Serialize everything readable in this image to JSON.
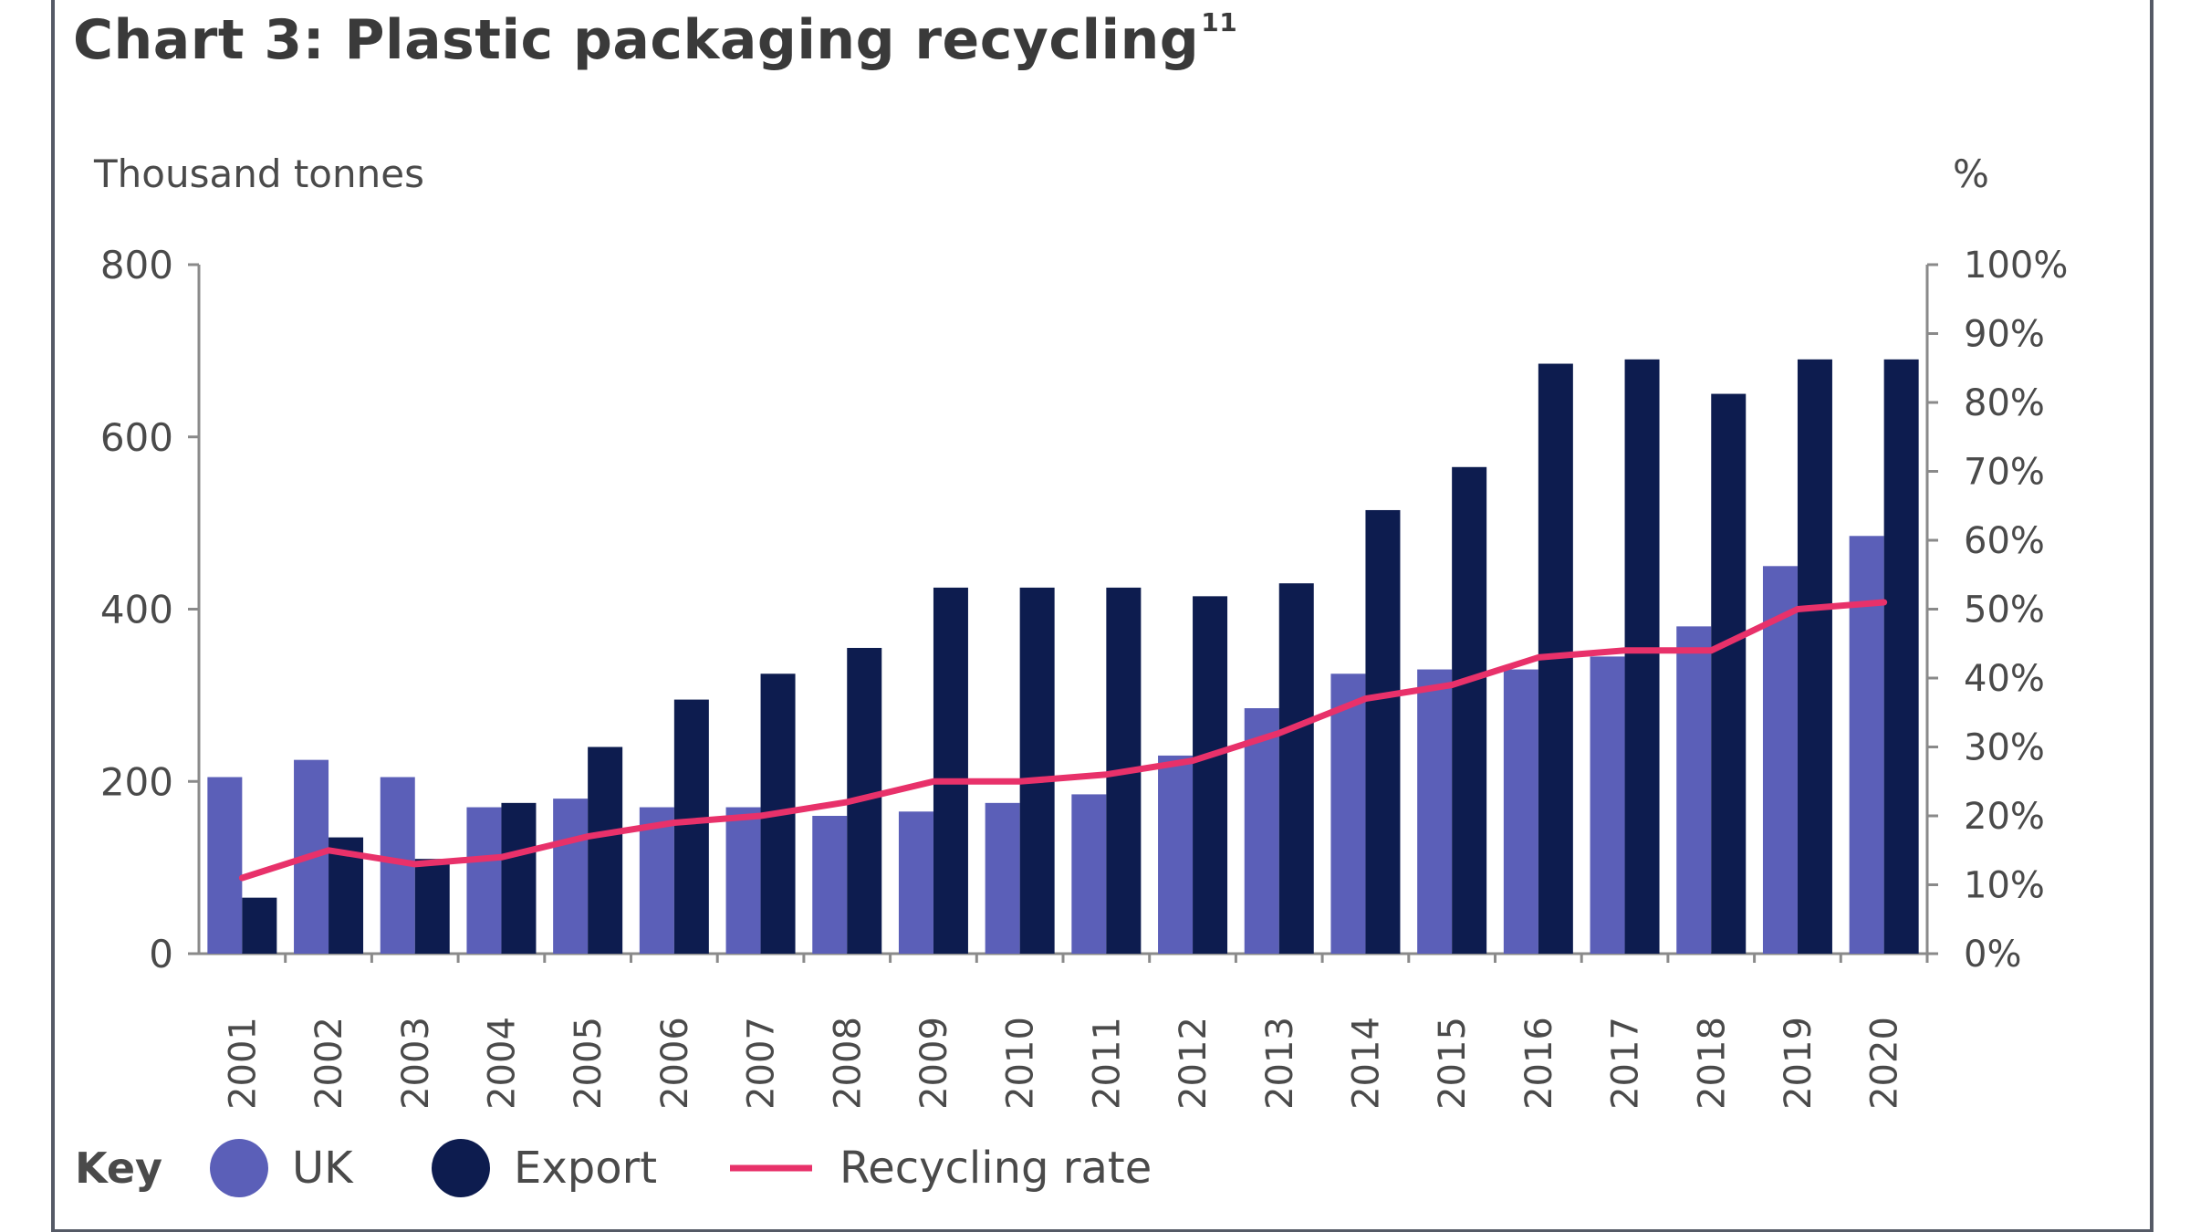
{
  "title": "Chart 3: Plastic packaging recycling",
  "title_footnote": "11",
  "chart_data": {
    "type": "bar",
    "title": "Chart 3: Plastic packaging recycling",
    "ylabel": "Thousand tonnes",
    "y2label": "%",
    "ylim": [
      0,
      800
    ],
    "y2lim": [
      0,
      100
    ],
    "yticks": [
      "0",
      "200",
      "400",
      "600",
      "800"
    ],
    "y2ticks": [
      "0%",
      "10%",
      "20%",
      "30%",
      "40%",
      "50%",
      "60%",
      "70%",
      "80%",
      "90%",
      "100%"
    ],
    "categories": [
      "2001",
      "2002",
      "2003",
      "2004",
      "2005",
      "2006",
      "2007",
      "2008",
      "2009",
      "2010",
      "2011",
      "2012",
      "2013",
      "2014",
      "2015",
      "2016",
      "2017",
      "2018",
      "2019",
      "2020"
    ],
    "series": [
      {
        "name": "UK",
        "type": "bar",
        "color": "#5b5fb8",
        "values": [
          205,
          225,
          205,
          170,
          180,
          170,
          170,
          160,
          165,
          175,
          185,
          230,
          285,
          325,
          330,
          330,
          345,
          380,
          450,
          485
        ]
      },
      {
        "name": "Export",
        "type": "bar",
        "color": "#0d1c4f",
        "values": [
          65,
          135,
          110,
          175,
          240,
          295,
          325,
          355,
          425,
          425,
          425,
          415,
          430,
          515,
          565,
          685,
          690,
          650,
          690,
          690
        ]
      },
      {
        "name": "Recycling rate",
        "type": "line",
        "axis": "right",
        "color": "#e8316a",
        "values": [
          11,
          15,
          13,
          14,
          17,
          19,
          20,
          22,
          25,
          25,
          26,
          28,
          32,
          37,
          39,
          43,
          44,
          44,
          50,
          51
        ]
      }
    ],
    "legend_title": "Key",
    "legend_position": "bottom-left",
    "grid": false
  }
}
